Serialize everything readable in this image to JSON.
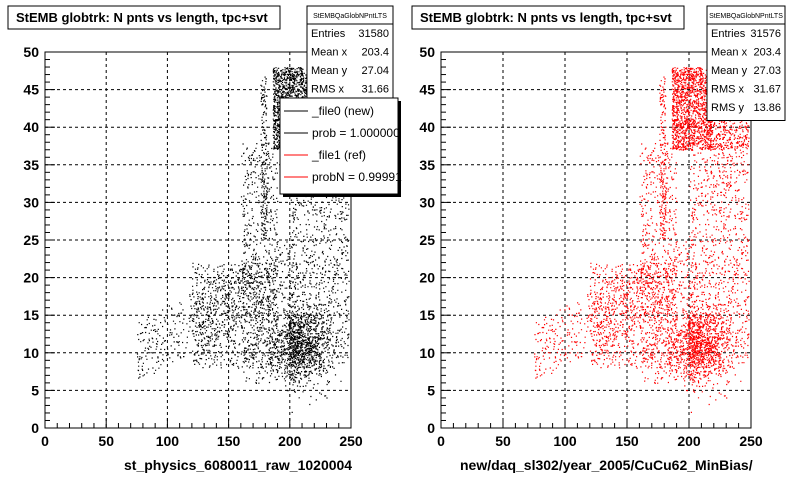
{
  "canvas": {
    "footer": ""
  },
  "chart_data": [
    {
      "type": "scatter",
      "title": "StEMB globtrk: N pnts vs length, tpc+svt",
      "xlabel": "st_physics_6080011_raw_1020004",
      "ylabel": "",
      "xlim": [
        0,
        250
      ],
      "ylim": [
        0,
        50
      ],
      "xticks": [
        0,
        50,
        100,
        150,
        200,
        250
      ],
      "yticks": [
        0,
        5,
        10,
        15,
        20,
        25,
        30,
        35,
        40,
        45,
        50
      ],
      "grid": true,
      "color": "#000000",
      "stats": {
        "name": "StEMBQaGlobNPntLTS",
        "rows": [
          {
            "label": "Entries",
            "value": "31580"
          },
          {
            "label": "Mean x",
            "value": "203.4"
          },
          {
            "label": "Mean y",
            "value": "27.04"
          },
          {
            "label": "RMS x",
            "value": "31.66"
          }
        ]
      },
      "legend": {
        "placement": "right",
        "entries": [
          {
            "label": "_file0 (new)",
            "color": "#000000"
          },
          {
            "label": "prob = 1.000000",
            "color": "#000000"
          },
          {
            "label": "_file1 (ref)",
            "color": "#ff0000"
          },
          {
            "label": "probN = 0.99991",
            "color": "#ff0000"
          }
        ]
      }
    },
    {
      "type": "scatter",
      "title": "StEMB globtrk: N pnts vs length, tpc+svt",
      "xlabel": "new/daq_sl302/year_2005/CuCu62_MinBias/",
      "ylabel": "",
      "xlim": [
        0,
        250
      ],
      "ylim": [
        0,
        50
      ],
      "xticks": [
        0,
        50,
        100,
        150,
        200,
        250
      ],
      "yticks": [
        0,
        5,
        10,
        15,
        20,
        25,
        30,
        35,
        40,
        45,
        50
      ],
      "grid": true,
      "color": "#ff0000",
      "stats": {
        "name": "StEMBQaGlobNPntLTS",
        "rows": [
          {
            "label": "Entries",
            "value": "31576"
          },
          {
            "label": "Mean x",
            "value": "203.4"
          },
          {
            "label": "Mean y",
            "value": "27.03"
          },
          {
            "label": "RMS x",
            "value": "31.67"
          },
          {
            "label": "RMS y",
            "value": "13.86"
          }
        ]
      }
    }
  ]
}
